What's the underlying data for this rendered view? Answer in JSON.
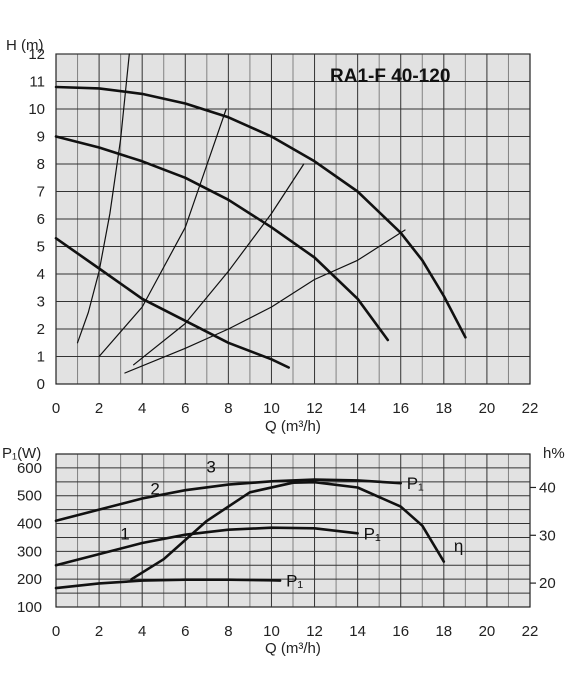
{
  "chart_data": [
    {
      "type": "line",
      "title": "RA1-F 40-120",
      "xlabel": "Q (m³/h)",
      "ylabel": "H (m)",
      "xlim": [
        0,
        22
      ],
      "ylim": [
        0,
        12
      ],
      "xticks": [
        "0",
        "2",
        "4",
        "6",
        "8",
        "10",
        "12",
        "14",
        "16",
        "18",
        "20",
        "22"
      ],
      "yticks": [
        "0",
        "1",
        "2",
        "3",
        "4",
        "5",
        "6",
        "7",
        "8",
        "9",
        "10",
        "11",
        "12"
      ],
      "grid": true,
      "series": [
        {
          "values": [
            [
              0,
              10.8
            ],
            [
              2,
              10.75
            ],
            [
              4,
              10.55
            ],
            [
              6,
              10.2
            ],
            [
              8,
              9.7
            ],
            [
              10,
              9.0
            ],
            [
              12,
              8.1
            ],
            [
              14,
              7.0
            ],
            [
              16,
              5.5
            ],
            [
              17,
              4.5
            ],
            [
              18,
              3.2
            ],
            [
              19,
              1.7
            ]
          ]
        },
        {
          "values": [
            [
              0,
              9.0
            ],
            [
              2,
              8.6
            ],
            [
              4,
              8.1
            ],
            [
              6,
              7.5
            ],
            [
              8,
              6.7
            ],
            [
              10,
              5.7
            ],
            [
              12,
              4.6
            ],
            [
              14,
              3.1
            ],
            [
              15.4,
              1.6
            ]
          ]
        },
        {
          "values": [
            [
              0,
              5.3
            ],
            [
              2,
              4.2
            ],
            [
              4,
              3.1
            ],
            [
              6,
              2.3
            ],
            [
              8,
              1.5
            ],
            [
              10,
              0.9
            ],
            [
              10.8,
              0.6
            ]
          ]
        },
        {
          "values": [
            [
              1,
              1.5
            ],
            [
              1.5,
              2.6
            ],
            [
              2,
              4.1
            ],
            [
              2.5,
              6.2
            ],
            [
              3,
              8.9
            ],
            [
              3.4,
              12
            ]
          ]
        },
        {
          "values": [
            [
              2,
              1.0
            ],
            [
              4,
              2.8
            ],
            [
              6,
              5.7
            ],
            [
              7.9,
              10.0
            ]
          ]
        },
        {
          "values": [
            [
              3.6,
              0.7
            ],
            [
              6,
              2.2
            ],
            [
              8,
              4.1
            ],
            [
              10,
              6.2
            ],
            [
              11.5,
              8.0
            ]
          ]
        },
        {
          "values": [
            [
              3.2,
              0.4
            ],
            [
              6,
              1.3
            ],
            [
              8,
              2.0
            ],
            [
              10,
              2.8
            ],
            [
              12,
              3.8
            ],
            [
              14,
              4.5
            ],
            [
              16.2,
              5.6
            ]
          ]
        }
      ]
    },
    {
      "type": "line",
      "xlabel": "Q (m³/h)",
      "ylabel": "P₁(W)",
      "y2label": "h%",
      "xlim": [
        0,
        22
      ],
      "ylim": [
        100,
        650
      ],
      "y2lim": [
        15,
        47
      ],
      "xticks": [
        "0",
        "2",
        "4",
        "6",
        "8",
        "10",
        "12",
        "14",
        "16",
        "18",
        "20",
        "22"
      ],
      "yticks": [
        "100",
        "200",
        "300",
        "400",
        "500",
        "600"
      ],
      "y2ticks": [
        "20",
        "30",
        "40"
      ],
      "grid": true,
      "power_series": [
        {
          "name": "P₁",
          "label": "3",
          "values": [
            [
              0,
              410
            ],
            [
              2,
              450
            ],
            [
              4,
              490
            ],
            [
              6,
              520
            ],
            [
              8,
              540
            ],
            [
              10,
              552
            ],
            [
              12,
              558
            ],
            [
              14,
              555
            ],
            [
              16,
              545
            ]
          ]
        },
        {
          "name": "P₁",
          "label": "2",
          "values": [
            [
              0,
              250
            ],
            [
              2,
              290
            ],
            [
              4,
              330
            ],
            [
              6,
              360
            ],
            [
              8,
              378
            ],
            [
              10,
              385
            ],
            [
              12,
              383
            ],
            [
              14,
              365
            ]
          ]
        },
        {
          "name": "P₁",
          "label": "1",
          "values": [
            [
              0,
              168
            ],
            [
              2,
              185
            ],
            [
              4,
              195
            ],
            [
              6,
              198
            ],
            [
              8,
              198
            ],
            [
              10,
              196
            ],
            [
              10.4,
              195
            ]
          ]
        }
      ],
      "efficiency_series": [
        {
          "label": "η",
          "values": [
            [
              3.5,
              20.8
            ],
            [
              5,
              25.0
            ],
            [
              7,
              33.0
            ],
            [
              9,
              39.0
            ],
            [
              11,
              41.0
            ],
            [
              12,
              41.1
            ],
            [
              14,
              40.0
            ],
            [
              16,
              36.0
            ],
            [
              17,
              32.0
            ],
            [
              18,
              24.5
            ]
          ]
        }
      ]
    }
  ]
}
